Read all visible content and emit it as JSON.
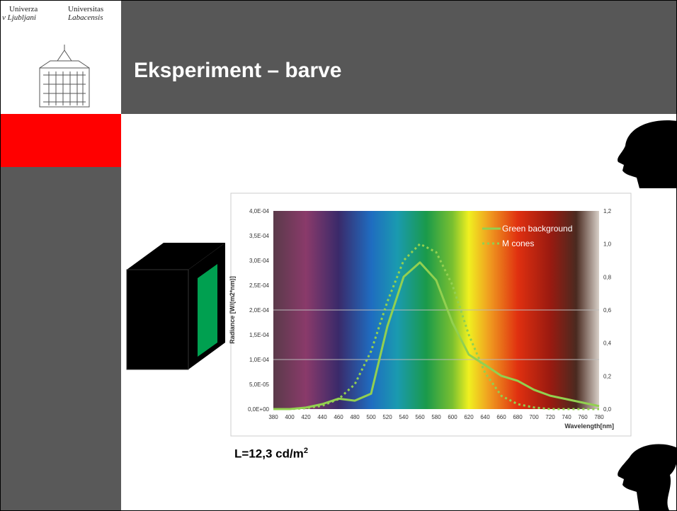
{
  "logo": {
    "left_line1": "Univerza",
    "left_line2": "v Ljubljani",
    "right_line1": "Universitas",
    "right_line2": "Labacensis"
  },
  "header": {
    "title": "Eksperiment – barve"
  },
  "luminance": {
    "text": "L=12,3 cd/m",
    "superscript": "2"
  },
  "chart_data": {
    "type": "line",
    "ylabel": "Radiance [W/(m2*nm)]",
    "xlabel": "Wavelength[nm]",
    "x": [
      380,
      400,
      420,
      440,
      460,
      480,
      500,
      520,
      540,
      560,
      580,
      600,
      620,
      640,
      660,
      680,
      700,
      720,
      740,
      760,
      780
    ],
    "xlim": [
      380,
      780
    ],
    "xticks": [
      380,
      400,
      420,
      440,
      460,
      480,
      500,
      520,
      540,
      560,
      580,
      600,
      620,
      640,
      660,
      680,
      700,
      720,
      740,
      760,
      780
    ],
    "ylim": [
      0,
      0.0004
    ],
    "yticks": [
      {
        "value": 0,
        "label": "0,0E+00"
      },
      {
        "value": 5e-05,
        "label": "5,0E-05"
      },
      {
        "value": 0.0001,
        "label": "1,0E-04"
      },
      {
        "value": 0.00015,
        "label": "1,5E-04"
      },
      {
        "value": 0.0002,
        "label": "2,0E-04"
      },
      {
        "value": 0.00025,
        "label": "2,5E-04"
      },
      {
        "value": 0.0003,
        "label": "3,0E-04"
      },
      {
        "value": 0.00035,
        "label": "3,5E-04"
      },
      {
        "value": 0.0004,
        "label": "4,0E-04"
      }
    ],
    "y2lim": [
      0,
      1.2
    ],
    "y2ticks": [
      {
        "value": 0,
        "label": "0,0"
      },
      {
        "value": 0.2,
        "label": "0,2"
      },
      {
        "value": 0.4,
        "label": "0,4"
      },
      {
        "value": 0.6,
        "label": "0,6"
      },
      {
        "value": 0.8,
        "label": "0,8"
      },
      {
        "value": 1.0,
        "label": "1,0"
      },
      {
        "value": 1.2,
        "label": "1,2"
      }
    ],
    "grid_lines": [
      {
        "value": 0.0001
      },
      {
        "value": 0.0002
      }
    ],
    "legend": "top-right",
    "series": [
      {
        "name": "Green background",
        "color": "#92d050",
        "style": "solid",
        "values": [
          0,
          0,
          3e-06,
          1e-05,
          2.1e-05,
          1.7e-05,
          3.1e-05,
          0.000167,
          0.000267,
          0.000296,
          0.00026,
          0.000174,
          0.00011,
          8.9e-05,
          6.7e-05,
          5.7e-05,
          3.9e-05,
          2.7e-05,
          2e-05,
          1.3e-05,
          6e-06
        ]
      },
      {
        "name": "M cones",
        "color": "#92d050",
        "style": "dotted",
        "axis": "y2",
        "values": [
          0,
          0,
          0.005,
          0.02,
          0.06,
          0.15,
          0.35,
          0.65,
          0.9,
          1.0,
          0.95,
          0.75,
          0.45,
          0.22,
          0.08,
          0.03,
          0.01,
          0,
          0,
          0,
          0
        ]
      }
    ]
  }
}
